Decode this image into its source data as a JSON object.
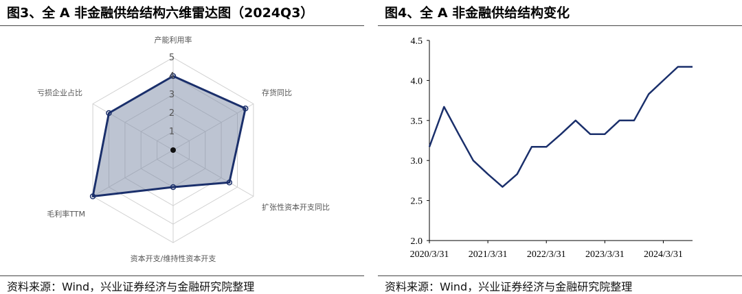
{
  "left": {
    "title": "图3、全 A 非金融供给结构六维雷达图（2024Q3）",
    "source": "资料来源：Wind，兴业证券经济与金融研究院整理"
  },
  "right": {
    "title": "图4、全 A 非金融供给结构变化",
    "source": "资料来源：Wind，兴业证券经济与金融研究院整理"
  },
  "colors": {
    "series_line": "#1a2f6b",
    "radar_fill": "#7c8aa6",
    "grid": "#d0d0d0",
    "axis": "#000000"
  },
  "chart_data": [
    {
      "type": "radar",
      "title": "图3、全 A 非金融供给结构六维雷达图（2024Q3）",
      "axes": [
        "产能利用率",
        "存货同比",
        "扩张性资本开支同比",
        "资本开支/维持性资本开支",
        "毛利率TTM",
        "亏损企业占比"
      ],
      "ticks": [
        "1",
        "2",
        "3",
        "4",
        "5"
      ],
      "range": [
        0,
        5
      ],
      "values": [
        4.0,
        4.5,
        3.5,
        2.0,
        5.0,
        4.0
      ]
    },
    {
      "type": "line",
      "title": "图4、全 A 非金融供给结构变化",
      "x_ticks": [
        "2020/3/31",
        "2021/3/31",
        "2022/3/31",
        "2023/3/31",
        "2024/3/31"
      ],
      "y_ticks": [
        "2.0",
        "2.5",
        "3.0",
        "3.5",
        "4.0",
        "4.5"
      ],
      "ylim": [
        2.0,
        4.5
      ],
      "x": [
        "2020/3/31",
        "2020/6/30",
        "2020/9/30",
        "2020/12/31",
        "2021/3/31",
        "2021/6/30",
        "2021/9/30",
        "2021/12/31",
        "2022/3/31",
        "2022/6/30",
        "2022/9/30",
        "2022/12/31",
        "2023/3/31",
        "2023/6/30",
        "2023/9/30",
        "2023/12/31",
        "2024/3/31",
        "2024/6/30",
        "2024/9/30"
      ],
      "values": [
        3.17,
        3.67,
        3.33,
        3.0,
        2.83,
        2.67,
        2.83,
        3.17,
        3.17,
        3.33,
        3.5,
        3.33,
        3.33,
        3.5,
        3.5,
        3.83,
        4.0,
        4.17,
        4.17
      ]
    }
  ]
}
